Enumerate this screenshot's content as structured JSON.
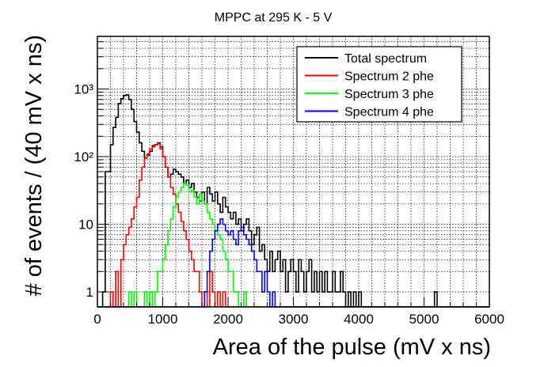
{
  "chart_data": {
    "type": "histogram",
    "title": "MPPC at 295 K - 5 V",
    "xlabel": "Area of the pulse (mV x ns)",
    "ylabel": "# of events / (40 mV x ns)",
    "xlim": [
      0,
      6000
    ],
    "ylim": [
      0.6,
      6000
    ],
    "yscale": "log",
    "grid": true,
    "bin_width": 40,
    "xticks": [
      0,
      1000,
      2000,
      3000,
      4000,
      5000,
      6000
    ],
    "xtick_labels": [
      "0",
      "1000",
      "2000",
      "3000",
      "4000",
      "5000",
      "6000"
    ],
    "yticks": [
      1,
      10,
      100,
      1000
    ],
    "ytick_labels": [
      "1",
      "10",
      "10²",
      "10³"
    ],
    "legend_position": "top-right",
    "series": [
      {
        "name": "Total spectrum",
        "color": "#000000",
        "points": [
          [
            80,
            1
          ],
          [
            120,
            60
          ],
          [
            160,
            60
          ],
          [
            200,
            150
          ],
          [
            240,
            270
          ],
          [
            280,
            380
          ],
          [
            320,
            610
          ],
          [
            360,
            720
          ],
          [
            400,
            800
          ],
          [
            440,
            820
          ],
          [
            480,
            700
          ],
          [
            520,
            500
          ],
          [
            560,
            330
          ],
          [
            600,
            230
          ],
          [
            640,
            160
          ],
          [
            680,
            120
          ],
          [
            720,
            95
          ],
          [
            760,
            105
          ],
          [
            800,
            120
          ],
          [
            840,
            145
          ],
          [
            880,
            150
          ],
          [
            920,
            160
          ],
          [
            960,
            140
          ],
          [
            1000,
            100
          ],
          [
            1040,
            70
          ],
          [
            1080,
            50
          ],
          [
            1120,
            55
          ],
          [
            1160,
            65
          ],
          [
            1200,
            60
          ],
          [
            1240,
            55
          ],
          [
            1280,
            50
          ],
          [
            1320,
            40
          ],
          [
            1360,
            45
          ],
          [
            1400,
            35
          ],
          [
            1440,
            40
          ],
          [
            1480,
            30
          ],
          [
            1520,
            25
          ],
          [
            1560,
            22
          ],
          [
            1600,
            30
          ],
          [
            1640,
            20
          ],
          [
            1680,
            35
          ],
          [
            1720,
            28
          ],
          [
            1760,
            22
          ],
          [
            1800,
            30
          ],
          [
            1840,
            20
          ],
          [
            1880,
            15
          ],
          [
            1920,
            25
          ],
          [
            1960,
            18
          ],
          [
            2000,
            15
          ],
          [
            2040,
            12
          ],
          [
            2080,
            15
          ],
          [
            2120,
            10
          ],
          [
            2160,
            12
          ],
          [
            2200,
            8
          ],
          [
            2240,
            10
          ],
          [
            2280,
            12
          ],
          [
            2320,
            8
          ],
          [
            2360,
            5
          ],
          [
            2400,
            7
          ],
          [
            2440,
            9
          ],
          [
            2480,
            4
          ],
          [
            2520,
            5
          ],
          [
            2560,
            3
          ],
          [
            2600,
            2
          ],
          [
            2640,
            4
          ],
          [
            2680,
            2
          ],
          [
            2720,
            3
          ],
          [
            2760,
            4
          ],
          [
            2800,
            2
          ],
          [
            2840,
            3
          ],
          [
            2880,
            1
          ],
          [
            2920,
            2
          ],
          [
            2960,
            3
          ],
          [
            3000,
            2
          ],
          [
            3040,
            1
          ],
          [
            3080,
            3
          ],
          [
            3120,
            2
          ],
          [
            3160,
            1
          ],
          [
            3200,
            2
          ],
          [
            3240,
            3
          ],
          [
            3280,
            1
          ],
          [
            3320,
            2
          ],
          [
            3360,
            1
          ],
          [
            3400,
            2
          ],
          [
            3440,
            1
          ],
          [
            3480,
            2
          ],
          [
            3520,
            1
          ],
          [
            3560,
            1
          ],
          [
            3600,
            2
          ],
          [
            3640,
            1
          ],
          [
            3680,
            1
          ],
          [
            3720,
            2
          ],
          [
            3760,
            1
          ],
          [
            3840,
            1
          ],
          [
            3920,
            1
          ],
          [
            4000,
            1
          ],
          [
            5160,
            1
          ]
        ]
      },
      {
        "name": "Spectrum 2 phe",
        "color": "#ff0000",
        "points": [
          [
            200,
            1
          ],
          [
            280,
            2
          ],
          [
            360,
            3
          ],
          [
            400,
            5
          ],
          [
            440,
            7
          ],
          [
            480,
            9
          ],
          [
            520,
            12
          ],
          [
            560,
            18
          ],
          [
            600,
            25
          ],
          [
            640,
            45
          ],
          [
            680,
            70
          ],
          [
            720,
            95
          ],
          [
            760,
            110
          ],
          [
            800,
            130
          ],
          [
            840,
            140
          ],
          [
            880,
            150
          ],
          [
            920,
            155
          ],
          [
            960,
            130
          ],
          [
            1000,
            100
          ],
          [
            1040,
            70
          ],
          [
            1080,
            50
          ],
          [
            1120,
            35
          ],
          [
            1160,
            28
          ],
          [
            1200,
            20
          ],
          [
            1240,
            15
          ],
          [
            1280,
            11
          ],
          [
            1320,
            8
          ],
          [
            1360,
            6
          ],
          [
            1400,
            4
          ],
          [
            1440,
            3
          ],
          [
            1480,
            2
          ],
          [
            1520,
            2
          ],
          [
            1560,
            1
          ],
          [
            1640,
            1
          ],
          [
            1720,
            2
          ],
          [
            1760,
            1
          ],
          [
            1840,
            1
          ],
          [
            1920,
            1
          ]
        ]
      },
      {
        "name": "Spectrum 3 phe",
        "color": "#00ff00",
        "points": [
          [
            480,
            1
          ],
          [
            560,
            1
          ],
          [
            720,
            1
          ],
          [
            800,
            1
          ],
          [
            880,
            1
          ],
          [
            920,
            2
          ],
          [
            960,
            2
          ],
          [
            1000,
            3
          ],
          [
            1040,
            5
          ],
          [
            1080,
            8
          ],
          [
            1120,
            12
          ],
          [
            1160,
            18
          ],
          [
            1200,
            25
          ],
          [
            1240,
            30
          ],
          [
            1280,
            35
          ],
          [
            1320,
            40
          ],
          [
            1360,
            38
          ],
          [
            1400,
            30
          ],
          [
            1440,
            32
          ],
          [
            1480,
            25
          ],
          [
            1520,
            20
          ],
          [
            1560,
            28
          ],
          [
            1600,
            22
          ],
          [
            1640,
            20
          ],
          [
            1680,
            15
          ],
          [
            1720,
            12
          ],
          [
            1760,
            10
          ],
          [
            1800,
            8
          ],
          [
            1840,
            7
          ],
          [
            1880,
            6
          ],
          [
            1920,
            4
          ],
          [
            1960,
            3
          ],
          [
            2000,
            2
          ],
          [
            2040,
            2
          ],
          [
            2080,
            1
          ],
          [
            2120,
            1
          ],
          [
            2240,
            1
          ]
        ]
      },
      {
        "name": "Spectrum 4 phe",
        "color": "#0000ff",
        "points": [
          [
            1640,
            1
          ],
          [
            1680,
            2
          ],
          [
            1720,
            4
          ],
          [
            1760,
            6
          ],
          [
            1800,
            8
          ],
          [
            1840,
            10
          ],
          [
            1880,
            12
          ],
          [
            1920,
            10
          ],
          [
            1960,
            8
          ],
          [
            2000,
            7
          ],
          [
            2040,
            8
          ],
          [
            2080,
            6
          ],
          [
            2120,
            5
          ],
          [
            2160,
            8
          ],
          [
            2200,
            9
          ],
          [
            2240,
            7
          ],
          [
            2280,
            6
          ],
          [
            2320,
            5
          ],
          [
            2360,
            4
          ],
          [
            2400,
            3
          ],
          [
            2440,
            2
          ],
          [
            2480,
            2
          ],
          [
            2520,
            1
          ],
          [
            2560,
            2
          ],
          [
            2600,
            1
          ],
          [
            2680,
            1
          ]
        ]
      }
    ]
  }
}
